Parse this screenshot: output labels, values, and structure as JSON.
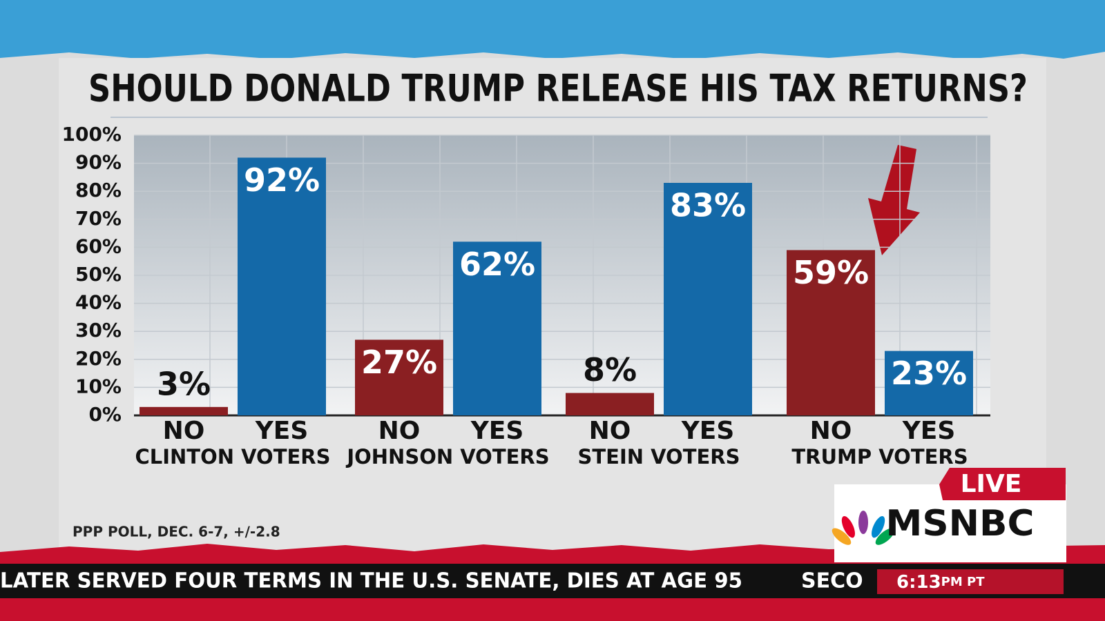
{
  "chart_data": {
    "type": "bar",
    "title": "SHOULD DONALD TRUMP RELEASE HIS TAX RETURNS?",
    "categories": [
      "CLINTON VOTERS",
      "JOHNSON VOTERS",
      "STEIN VOTERS",
      "TRUMP VOTERS"
    ],
    "series": [
      {
        "name": "NO",
        "color": "#8a1f22",
        "values": [
          3,
          27,
          8,
          59
        ],
        "value_labels": [
          "3%",
          "27%",
          "8%",
          "59%"
        ]
      },
      {
        "name": "YES",
        "color": "#1469a8",
        "values": [
          92,
          62,
          83,
          23
        ],
        "value_labels": [
          "92%",
          "62%",
          "83%",
          "23%"
        ]
      }
    ],
    "ylim": [
      0,
      100
    ],
    "yticks": [
      {
        "value": 0,
        "label": "0%"
      },
      {
        "value": 10,
        "label": "10%"
      },
      {
        "value": 20,
        "label": "20%"
      },
      {
        "value": 30,
        "label": "30%"
      },
      {
        "value": 40,
        "label": "40%"
      },
      {
        "value": 50,
        "label": "50%"
      },
      {
        "value": 60,
        "label": "60%"
      },
      {
        "value": 70,
        "label": "70%"
      },
      {
        "value": 80,
        "label": "80%"
      },
      {
        "value": 90,
        "label": "90%"
      },
      {
        "value": 100,
        "label": "100%"
      }
    ],
    "grid": true,
    "source": "PPP POLL, DEC. 6-7, +/-2.8"
  },
  "broadcast": {
    "live": "LIVE",
    "network": "MSNBC",
    "ticker": "LATER SERVED FOUR TERMS IN THE U.S. SENATE, DIES AT AGE 95",
    "ticker_next": "SECO",
    "time": "6:13",
    "time_suffix": "PM PT"
  }
}
